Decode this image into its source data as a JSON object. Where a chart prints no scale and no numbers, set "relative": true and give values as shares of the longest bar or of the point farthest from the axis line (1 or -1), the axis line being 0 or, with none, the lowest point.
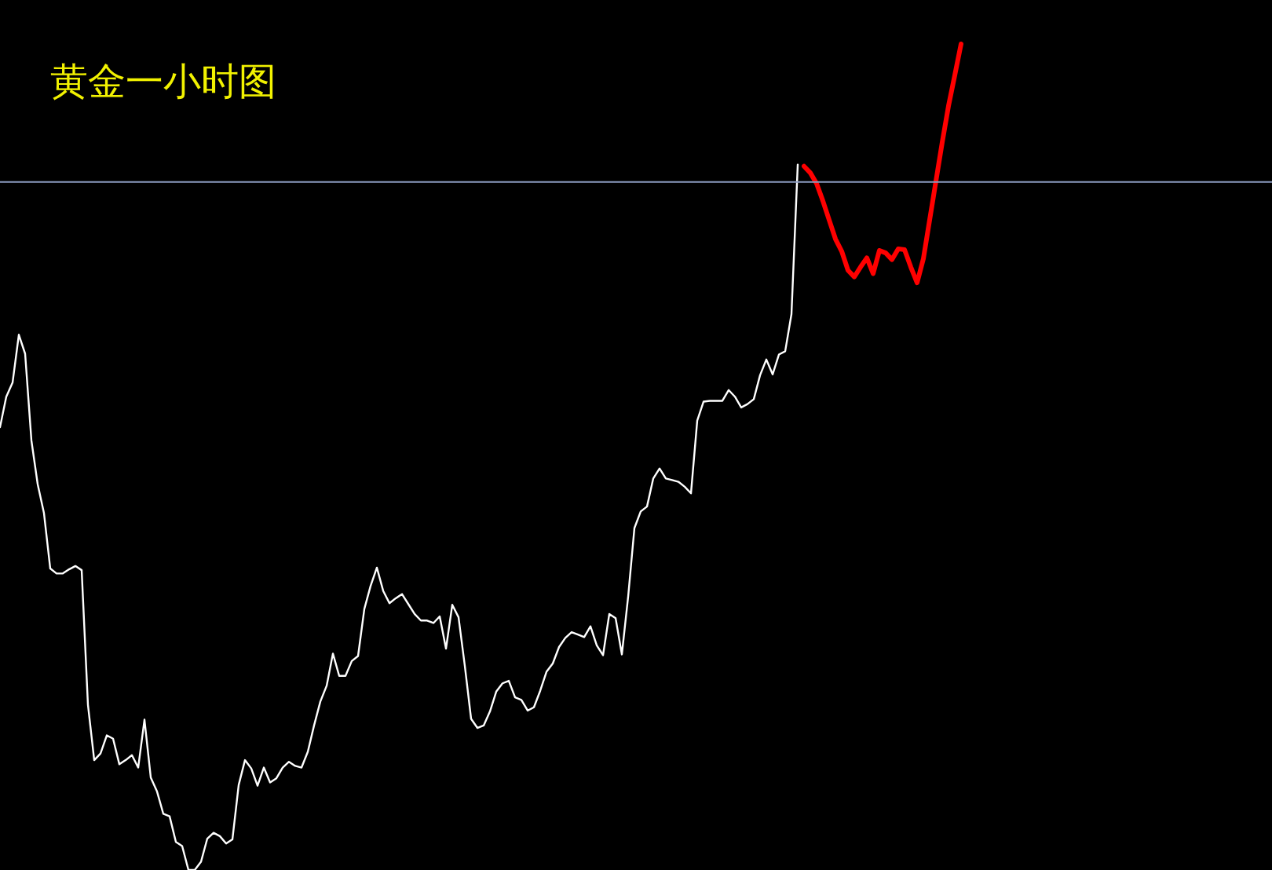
{
  "chart_data": {
    "type": "line",
    "title": "黄金一小时图",
    "relative": true,
    "categories": [
      null,
      null,
      null,
      null,
      null,
      null,
      null,
      null,
      null,
      null,
      null,
      null,
      null,
      null,
      null,
      null,
      null,
      null,
      null,
      null,
      null,
      null,
      null,
      null,
      null,
      null,
      null,
      null,
      null,
      null,
      null,
      null,
      null,
      null,
      null,
      null,
      null,
      null,
      null,
      null,
      null,
      null,
      null,
      null,
      null,
      null,
      null,
      null,
      null,
      null,
      null,
      null,
      null,
      null,
      null,
      null,
      null,
      null,
      null,
      null,
      null,
      null,
      null,
      null,
      null,
      null,
      null,
      null,
      null,
      null,
      null,
      null,
      null,
      null,
      null,
      null,
      null,
      null,
      null,
      null,
      null,
      null,
      null,
      null,
      null,
      null,
      null,
      null,
      null,
      null,
      null,
      null,
      null,
      null,
      null,
      null,
      null,
      null,
      null,
      null,
      null,
      null,
      null,
      null,
      null,
      null,
      null,
      null,
      null,
      null,
      null,
      null,
      null,
      null,
      null,
      null,
      null,
      null,
      null,
      null,
      null,
      null,
      null,
      null,
      null,
      null,
      null,
      null,
      null,
      null,
      null,
      null,
      null,
      null,
      null,
      null,
      null,
      null,
      null,
      null,
      null,
      null,
      null,
      null,
      null,
      null,
      null,
      null,
      null,
      null,
      null,
      null,
      null,
      null
    ],
    "series": [
      {
        "color": "#ffffff",
        "values": [
          0.536,
          0.573,
          0.59,
          0.648,
          0.625,
          0.52,
          0.467,
          0.432,
          0.365,
          0.359,
          0.359,
          0.364,
          0.368,
          0.363,
          0.2,
          0.133,
          0.141,
          0.163,
          0.159,
          0.128,
          0.133,
          0.139,
          0.124,
          0.182,
          0.112,
          0.095,
          0.068,
          0.065,
          0.034,
          0.029,
          0,
          0,
          0.01,
          0.038,
          0.045,
          0.041,
          0.032,
          0.037,
          0.103,
          0.133,
          0.123,
          0.102,
          0.124,
          0.106,
          0.111,
          0.124,
          0.131,
          0.126,
          0.124,
          0.143,
          0.175,
          0.204,
          0.223,
          0.262,
          0.235,
          0.235,
          0.253,
          0.259,
          0.316,
          0.344,
          0.366,
          0.338,
          0.323,
          0.329,
          0.334,
          0.322,
          0.31,
          0.302,
          0.302,
          0.299,
          0.307,
          0.268,
          0.321,
          0.306,
          0.247,
          0.183,
          0.172,
          0.175,
          0.192,
          0.216,
          0.226,
          0.229,
          0.209,
          0.206,
          0.193,
          0.197,
          0.217,
          0.24,
          0.25,
          0.27,
          0.281,
          0.288,
          0.285,
          0.282,
          0.295,
          0.272,
          0.26,
          0.31,
          0.305,
          0.261,
          0.331,
          0.414,
          0.434,
          0.44,
          0.474,
          0.486,
          0.474,
          0.472,
          0.47,
          0.464,
          0.456,
          0.544,
          0.567,
          0.568,
          0.568,
          0.568,
          0.581,
          0.573,
          0.56,
          0.564,
          0.57,
          0.599,
          0.618,
          0.6,
          0.624,
          0.628,
          0.673,
          0.854,
          null,
          null,
          null,
          null,
          null,
          null,
          null,
          null,
          null,
          null,
          null,
          null,
          null,
          null,
          null,
          null,
          null,
          null,
          null,
          null,
          null,
          null,
          null,
          null,
          null,
          null
        ]
      },
      {
        "color": "#ff0000",
        "values": [
          null,
          null,
          null,
          null,
          null,
          null,
          null,
          null,
          null,
          null,
          null,
          null,
          null,
          null,
          null,
          null,
          null,
          null,
          null,
          null,
          null,
          null,
          null,
          null,
          null,
          null,
          null,
          null,
          null,
          null,
          null,
          null,
          null,
          null,
          null,
          null,
          null,
          null,
          null,
          null,
          null,
          null,
          null,
          null,
          null,
          null,
          null,
          null,
          null,
          null,
          null,
          null,
          null,
          null,
          null,
          null,
          null,
          null,
          null,
          null,
          null,
          null,
          null,
          null,
          null,
          null,
          null,
          null,
          null,
          null,
          null,
          null,
          null,
          null,
          null,
          null,
          null,
          null,
          null,
          null,
          null,
          null,
          null,
          null,
          null,
          null,
          null,
          null,
          null,
          null,
          null,
          null,
          null,
          null,
          null,
          null,
          null,
          null,
          null,
          null,
          null,
          null,
          null,
          null,
          null,
          null,
          null,
          null,
          null,
          null,
          null,
          null,
          null,
          null,
          null,
          null,
          null,
          null,
          null,
          null,
          null,
          null,
          null,
          null,
          null,
          null,
          null,
          null,
          0.852,
          0.844,
          0.831,
          0.81,
          0.787,
          0.764,
          0.749,
          0.726,
          0.718,
          0.73,
          0.741,
          0.722,
          0.75,
          0.747,
          0.739,
          0.752,
          0.751,
          0.73,
          0.711,
          0.74,
          0.787,
          0.834,
          0.881,
          0.925,
          0.962,
          1
        ]
      }
    ],
    "ref_lines": [
      {
        "axis": "y",
        "value": 0.833,
        "color": "#8b9bc0"
      }
    ]
  }
}
